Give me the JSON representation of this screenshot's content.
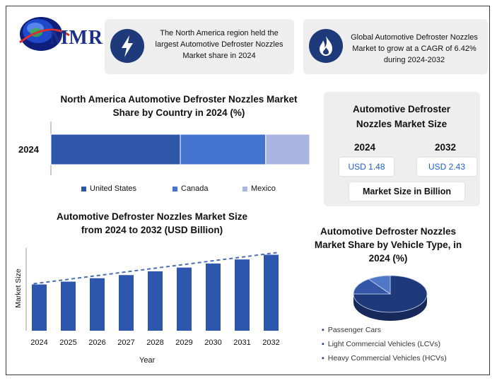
{
  "brand": {
    "logo_text": "MMR"
  },
  "header_cards": [
    {
      "text": "The North America region held the largest Automotive Defroster Nozzles Market share in 2024",
      "icon": "lightning-icon"
    },
    {
      "text": "Global Automotive Defroster Nozzles Market to grow at a CAGR of 6.42% during 2024-2032",
      "icon": "flame-icon"
    }
  ],
  "market_size_panel": {
    "title": "Automotive Defroster Nozzles Market Size",
    "year_start": "2024",
    "year_end": "2032",
    "value_start": "USD 1.48",
    "value_end": "USD 2.43",
    "footer": "Market Size in Billion"
  },
  "colors": {
    "united_states": "#2e57a9",
    "canada": "#4573d0",
    "mexico": "#a9b6e2",
    "bar": "#2d56ad",
    "trend": "#4a6fb5",
    "pie_dark": "#1f3a7a",
    "pie_mid": "#3356a6",
    "pie_light": "#5177c7"
  },
  "chart_data": [
    {
      "type": "bar",
      "orientation": "horizontal-stacked",
      "title": "North America Automotive Defroster Nozzles Market Share by Country in 2024 (%)",
      "categories": [
        "2024"
      ],
      "series": [
        {
          "name": "United States",
          "values": [
            50
          ]
        },
        {
          "name": "Canada",
          "values": [
            33
          ]
        },
        {
          "name": "Mexico",
          "values": [
            17
          ]
        }
      ],
      "legend_position": "bottom"
    },
    {
      "type": "bar",
      "title": "Automotive Defroster Nozzles Market Size from 2024 to 2032 (USD Billion)",
      "xlabel": "Year",
      "ylabel": "Market Size",
      "categories": [
        "2024",
        "2025",
        "2026",
        "2027",
        "2028",
        "2029",
        "2030",
        "2031",
        "2032"
      ],
      "values": [
        1.48,
        1.57,
        1.68,
        1.78,
        1.9,
        2.02,
        2.15,
        2.28,
        2.43
      ],
      "ylim": [
        0,
        2.6
      ],
      "trendline": "dashed linear"
    },
    {
      "type": "pie",
      "title": "Automotive Defroster Nozzles Market Share by Vehicle Type, in 2024 (%)",
      "labels": [
        "Passenger Cars",
        "Light Commercial Vehicles (LCVs)",
        "Heavy Commercial Vehicles (HCVs)"
      ],
      "values": [
        75,
        15,
        10
      ],
      "legend_position": "bottom"
    }
  ]
}
